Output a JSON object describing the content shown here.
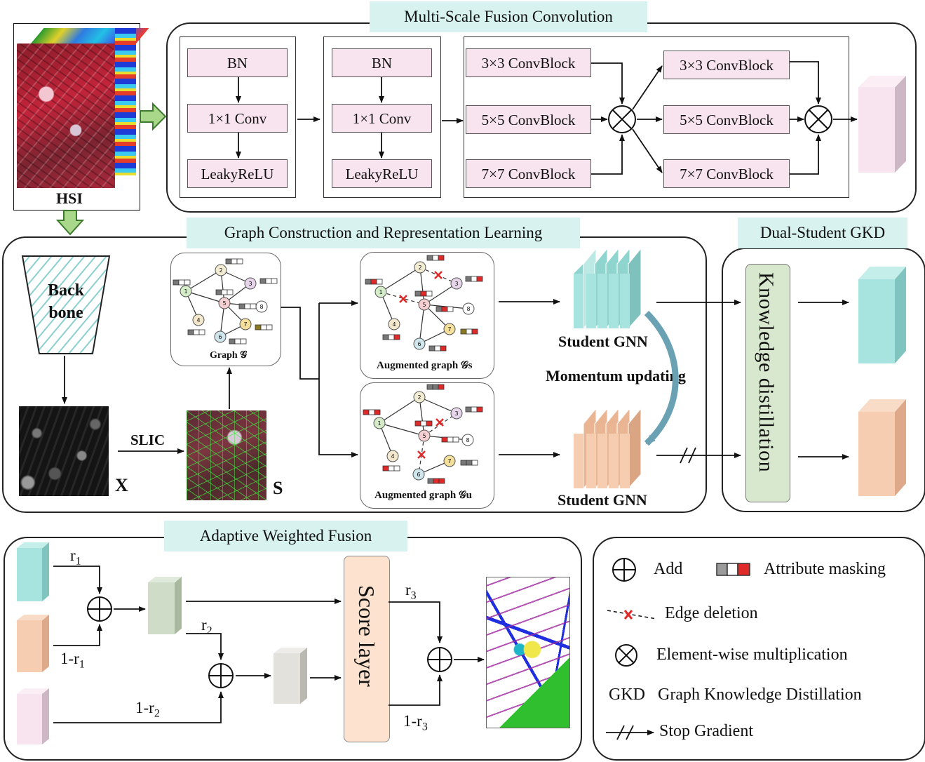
{
  "hsi": {
    "label": "HSI"
  },
  "msfc": {
    "title": "Multi-Scale Fusion Convolution",
    "block_a": [
      "BN",
      "1×1 Conv",
      "LeakyReLU"
    ],
    "block_b": [
      "BN",
      "1×1 Conv",
      "LeakyReLU"
    ],
    "conv_left": [
      "3×3 ConvBlock",
      "5×5 ConvBlock",
      "7×7 ConvBlock"
    ],
    "conv_right": [
      "3×3 ConvBlock",
      "5×5 ConvBlock",
      "7×7 ConvBlock"
    ]
  },
  "graph": {
    "title": "Graph Construction and Representation Learning",
    "backbone_label": "Back bone",
    "x_label": "X",
    "slic_label": "SLIC",
    "s_label": "S",
    "graph_caption": "Graph 𝒢",
    "aug_s_caption": "Augmented graph 𝒢s",
    "aug_u_caption": "Augmented graph 𝒢u",
    "student_top": "Student GNN",
    "student_bottom": "Student GNN",
    "momentum": "Momentum updating"
  },
  "gkd": {
    "title": "Dual-Student GKD",
    "distill": "Knowledge distillation"
  },
  "awf": {
    "title": "Adaptive Weighted Fusion",
    "score": "Score layer",
    "r1": "r",
    "r1_sub": "1",
    "one_r1": "1-r",
    "one_r1_sub": "1",
    "r2": "r",
    "r2_sub": "2",
    "one_r2": "1-r",
    "one_r2_sub": "2",
    "r3": "r",
    "r3_sub": "3",
    "one_r3": "1-r",
    "one_r3_sub": "3"
  },
  "legend": {
    "add": "Add",
    "mask": "Attribute masking",
    "edge": "Edge deletion",
    "mult": "Element-wise multiplication",
    "gkd_abbr": "GKD",
    "gkd_full": "Graph Knowledge Distillation",
    "stop": "Stop Gradient"
  },
  "colors": {
    "teal": "#a7e3df",
    "peach": "#f6cdb0",
    "pink": "#f8e4ef",
    "sage": "#cfdcc8",
    "gray": "#e3e1dc",
    "pill": "#d8f3ef",
    "score": "#fde3cf",
    "distill": "#d8e8cf",
    "mask_red": "#e02a2a"
  }
}
